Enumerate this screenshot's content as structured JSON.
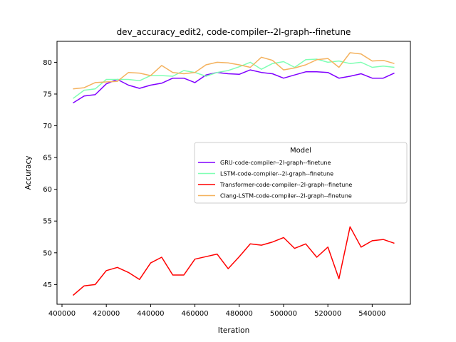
{
  "chart_data": {
    "type": "line",
    "title": "dev_accuracy_edit2, code-compiler--2l-graph--finetune",
    "xlabel": "Iteration",
    "ylabel": "Accuracy",
    "xlim": [
      397750,
      557250
    ],
    "ylim": [
      41.9,
      83.3
    ],
    "xticks": [
      400000,
      420000,
      440000,
      460000,
      480000,
      500000,
      520000,
      540000
    ],
    "yticks": [
      45,
      50,
      55,
      60,
      65,
      70,
      75,
      80
    ],
    "grid": false,
    "legend": {
      "title": "Model",
      "placement": "center-right"
    },
    "x": [
      405000,
      410000,
      415000,
      420000,
      425000,
      430000,
      435000,
      440000,
      445000,
      450000,
      455000,
      460000,
      465000,
      470000,
      475000,
      480000,
      485000,
      490000,
      495000,
      500000,
      505000,
      510000,
      515000,
      520000,
      525000,
      530000,
      535000,
      540000,
      545000,
      550000
    ],
    "series": [
      {
        "name": "GRU-code-compiler--2l-graph--finetune",
        "color": "#8000ff",
        "values": [
          73.6,
          74.7,
          74.9,
          76.6,
          77.3,
          76.4,
          75.9,
          76.4,
          76.7,
          77.5,
          77.5,
          76.8,
          78.0,
          78.4,
          78.2,
          78.1,
          78.8,
          78.4,
          78.2,
          77.5,
          78.0,
          78.5,
          78.5,
          78.4,
          77.5,
          77.8,
          78.2,
          77.5,
          77.5,
          78.3
        ]
      },
      {
        "name": "LSTM-code-compiler--2l-graph--finetune",
        "color": "#80ffb4",
        "values": [
          74.3,
          75.6,
          75.8,
          77.3,
          77.3,
          77.3,
          77.1,
          77.9,
          77.9,
          77.8,
          78.7,
          78.4,
          77.8,
          78.4,
          78.7,
          79.3,
          80.0,
          78.9,
          79.8,
          80.1,
          79.2,
          80.4,
          80.5,
          80.0,
          80.2,
          79.8,
          80.0,
          79.2,
          79.4,
          79.2
        ]
      },
      {
        "name": "Transformer-code-compiler--2l-graph--finetune",
        "color": "#ff0000",
        "values": [
          43.3,
          44.8,
          45.0,
          47.2,
          47.7,
          46.9,
          45.8,
          48.4,
          49.3,
          46.5,
          46.5,
          49.0,
          49.4,
          49.8,
          47.5,
          49.4,
          51.4,
          51.2,
          51.7,
          52.4,
          50.7,
          51.4,
          49.3,
          50.9,
          45.9,
          54.1,
          50.9,
          51.9,
          52.1,
          51.5
        ]
      },
      {
        "name": "Clang-LSTM-code-compiler--2l-graph--finetune",
        "color": "#f4b25e",
        "values": [
          75.8,
          76.0,
          76.8,
          76.9,
          77.0,
          78.4,
          78.3,
          77.9,
          79.5,
          78.4,
          78.2,
          78.4,
          79.6,
          80.0,
          79.9,
          79.6,
          79.2,
          80.8,
          80.3,
          78.8,
          79.1,
          79.6,
          80.4,
          80.6,
          79.2,
          81.5,
          81.3,
          80.2,
          80.3,
          79.8
        ]
      }
    ]
  }
}
